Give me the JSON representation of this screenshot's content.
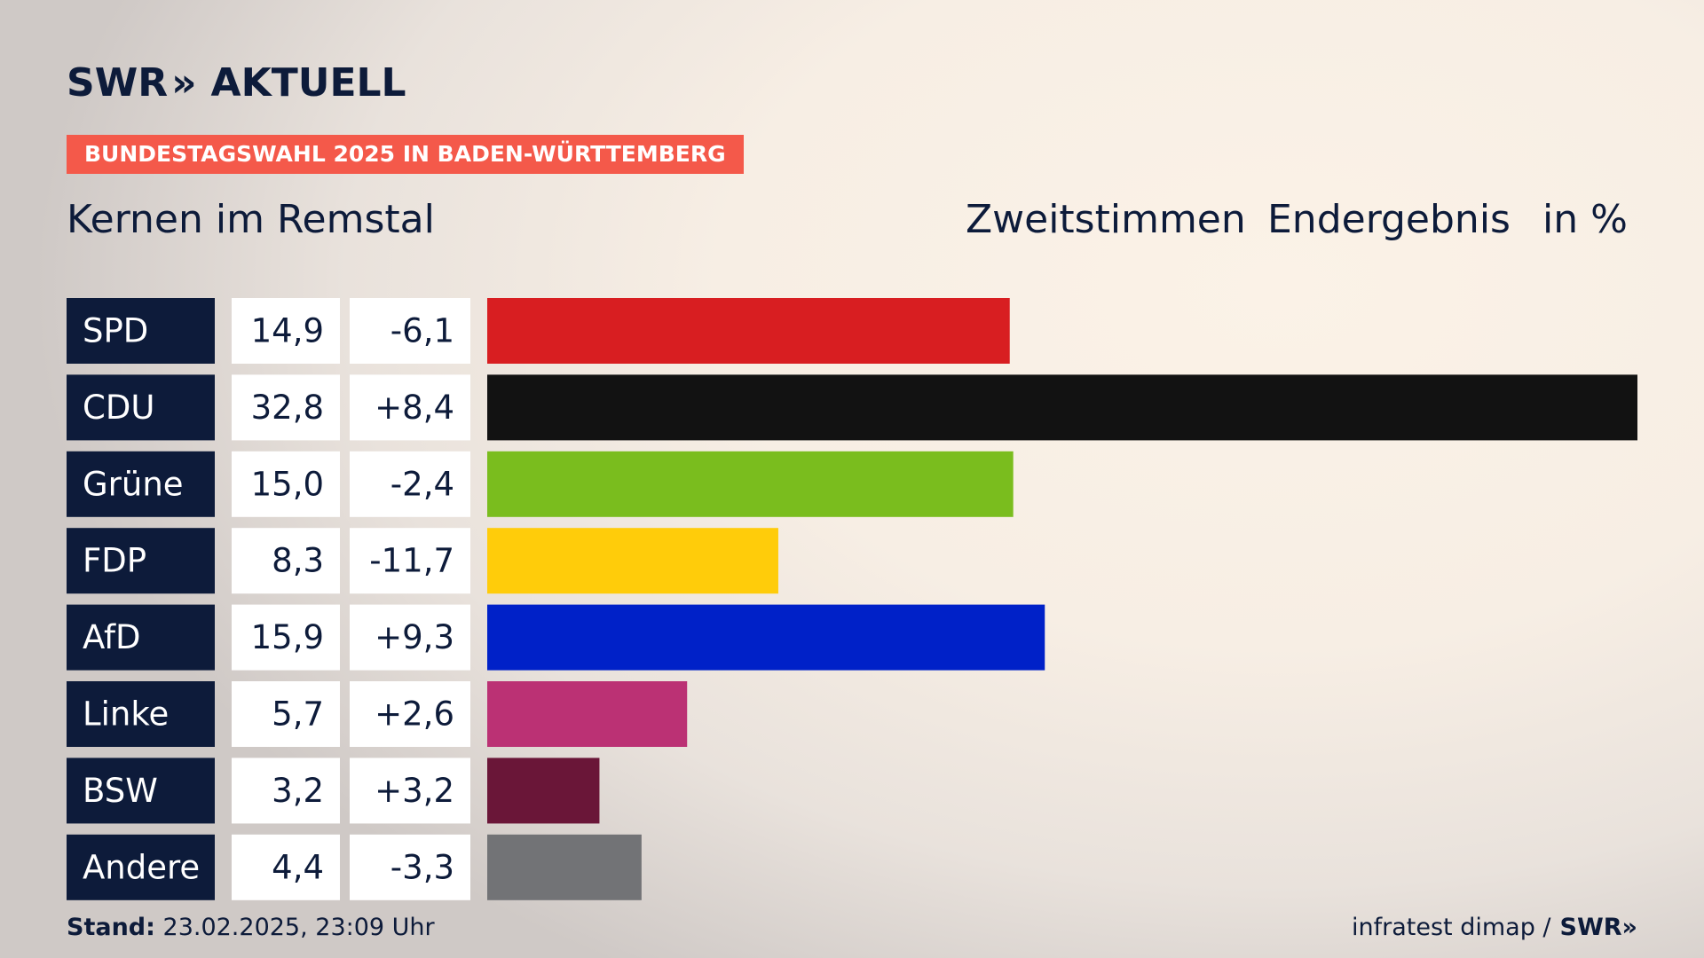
{
  "header": {
    "logo_left": "SWR",
    "logo_chevrons": "»",
    "logo_right": "AKTUELL",
    "kicker": "BUNDESTAGSWAHL 2025 IN BADEN-WÜRTTEMBERG",
    "place": "Kernen im Remstal",
    "col_vote": "Zweitstimmen",
    "col_result": "Endergebnis",
    "col_unit": "in %"
  },
  "footer": {
    "stand_label": "Stand:",
    "stand_value": "23.02.2025, 23:09 Uhr",
    "source": "infratest dimap /",
    "brand": "SWR»"
  },
  "chart_data": {
    "type": "bar",
    "categories": [
      "SPD",
      "CDU",
      "Grüne",
      "FDP",
      "AfD",
      "Linke",
      "BSW",
      "Andere"
    ],
    "values": [
      14.9,
      32.8,
      15.0,
      8.3,
      15.9,
      5.7,
      3.2,
      4.4
    ],
    "value_labels": [
      "14,9",
      "32,8",
      "15,0",
      "8,3",
      "15,9",
      "5,7",
      "3,2",
      "4,4"
    ],
    "changes": [
      "-6,1",
      "+8,4",
      "-2,4",
      "-11,7",
      "+9,3",
      "+2,6",
      "+3,2",
      "-3,3"
    ],
    "colors": [
      "#d81e21",
      "#121212",
      "#7abd1e",
      "#ffcc0a",
      "#0021c8",
      "#bb3174",
      "#6a1638",
      "#727376"
    ],
    "xlim": [
      0,
      32.8
    ],
    "grid": false,
    "legend": "none"
  }
}
